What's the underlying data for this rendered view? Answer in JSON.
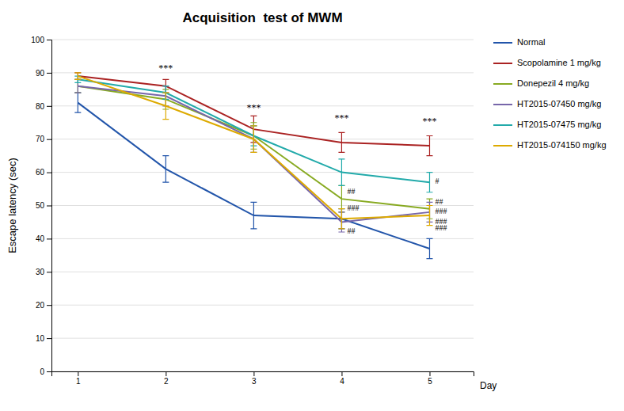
{
  "chart_data": {
    "type": "line",
    "title": "Acquisition  test of MWM",
    "xlabel": "Day",
    "ylabel": "Escape latency (sec)",
    "x": [
      1,
      2,
      3,
      4,
      5
    ],
    "xlim": [
      0.7,
      5.5
    ],
    "xticks": [
      1,
      2,
      3,
      4,
      5
    ],
    "ylim": [
      0,
      100
    ],
    "yticks": [
      0,
      10,
      20,
      30,
      40,
      50,
      60,
      70,
      80,
      90,
      100
    ],
    "grid": true,
    "legend": "right",
    "series": [
      {
        "name": "Normal",
        "color": "#2255AA",
        "values": [
          81,
          61,
          47,
          46,
          37
        ],
        "errors": [
          3,
          4,
          4,
          3,
          3
        ]
      },
      {
        "name": "Scopolamine 1 mg/kg",
        "color": "#AA2222",
        "values": [
          89,
          86,
          73,
          69,
          68
        ],
        "errors": [
          1,
          2,
          4,
          3,
          3
        ]
      },
      {
        "name": "Donepezil 4 mg/kg",
        "color": "#88AA22",
        "values": [
          86,
          82,
          71,
          52,
          49
        ],
        "errors": [
          2,
          3,
          4,
          4,
          3
        ]
      },
      {
        "name": "HT2015-07450 mg/kg",
        "color": "#7766AA",
        "values": [
          86,
          83,
          70,
          45,
          48
        ],
        "errors": [
          2,
          3,
          4,
          3,
          3
        ]
      },
      {
        "name": "HT2015-07475 mg/kg",
        "color": "#22AAAA",
        "values": [
          88,
          84,
          71,
          60,
          57
        ],
        "errors": [
          1,
          2,
          3,
          4,
          3
        ]
      },
      {
        "name": "HT2015-074150 mg/kg",
        "color": "#DDAA00",
        "values": [
          89,
          80,
          70,
          46,
          47
        ],
        "errors": [
          1,
          4,
          4,
          3,
          3
        ]
      }
    ],
    "star_annotations": [
      {
        "x": 2,
        "y": 90,
        "text": "***"
      },
      {
        "x": 3,
        "y": 78,
        "text": "***"
      },
      {
        "x": 4,
        "y": 75,
        "text": "***"
      },
      {
        "x": 5,
        "y": 74,
        "text": "***"
      }
    ],
    "hash_annotations": [
      {
        "x": 4,
        "y": 54,
        "text": "##"
      },
      {
        "x": 4,
        "y": 49,
        "text": "###"
      },
      {
        "x": 4,
        "y": 42,
        "text": "##"
      },
      {
        "x": 5,
        "y": 57,
        "text": "#"
      },
      {
        "x": 5,
        "y": 51,
        "text": "##"
      },
      {
        "x": 5,
        "y": 48,
        "text": "###"
      },
      {
        "x": 5,
        "y": 45,
        "text": "###"
      },
      {
        "x": 5,
        "y": 43,
        "text": "###"
      }
    ]
  }
}
